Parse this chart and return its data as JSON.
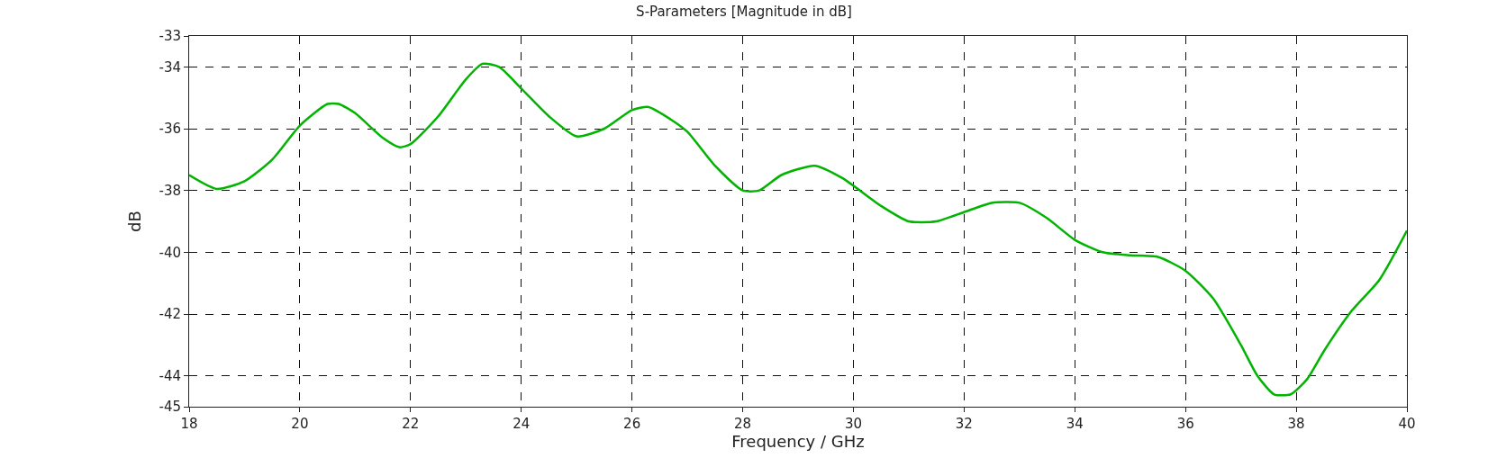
{
  "chart_data": {
    "type": "line",
    "title": "S-Parameters [Magnitude in dB]",
    "xlabel": "Frequency / GHz",
    "ylabel": "dB",
    "x": [
      18,
      18.5,
      19,
      19.5,
      20,
      20.5,
      20.7,
      21,
      21.5,
      21.8,
      22,
      22.5,
      23,
      23.3,
      23.6,
      24,
      24.5,
      25,
      25.5,
      26,
      26.3,
      26.7,
      27,
      27.5,
      28,
      28.3,
      28.7,
      29.3,
      29.8,
      30.5,
      31,
      31.5,
      32,
      32.5,
      33,
      33.5,
      34,
      34.5,
      35,
      35.5,
      36,
      36.5,
      37,
      37.3,
      37.6,
      37.9,
      38.2,
      38.5,
      39,
      39.5,
      40
    ],
    "series": [
      {
        "color": "#00b400",
        "values": [
          -37.5,
          -37.95,
          -37.7,
          -37.0,
          -35.9,
          -35.2,
          -35.2,
          -35.5,
          -36.3,
          -36.6,
          -36.5,
          -35.6,
          -34.4,
          -33.9,
          -34.0,
          -34.7,
          -35.6,
          -36.25,
          -36.0,
          -35.4,
          -35.3,
          -35.7,
          -36.1,
          -37.2,
          -38.0,
          -38.0,
          -37.5,
          -37.2,
          -37.6,
          -38.5,
          -39.0,
          -39.0,
          -38.7,
          -38.4,
          -38.4,
          -38.9,
          -39.6,
          -40.0,
          -40.1,
          -40.15,
          -40.6,
          -41.5,
          -43.0,
          -44.0,
          -44.6,
          -44.6,
          -44.1,
          -43.2,
          -41.9,
          -40.9,
          -39.3
        ]
      }
    ],
    "xlim": [
      18,
      40
    ],
    "xticks": [
      18,
      20,
      22,
      24,
      26,
      28,
      30,
      32,
      34,
      36,
      38,
      40
    ],
    "ylim": [
      -45,
      -33
    ],
    "yticks": [
      -33,
      -34,
      -36,
      -38,
      -40,
      -42,
      -44,
      -45
    ],
    "grid": true,
    "line_style": "solid",
    "marker": "none"
  }
}
